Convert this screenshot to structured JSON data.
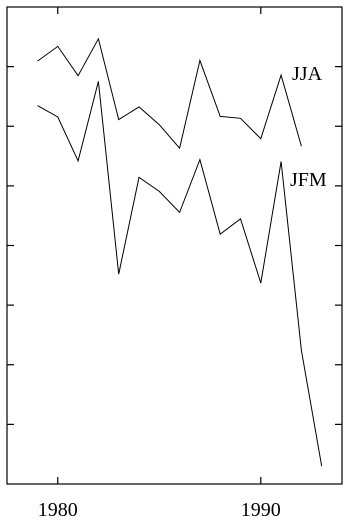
{
  "chart_data": {
    "type": "line",
    "title": "",
    "xlabel": "",
    "ylabel": "",
    "xlim": [
      1977.5,
      1994.0
    ],
    "ylim": [
      0.0,
      7.5
    ],
    "grid": false,
    "legend": "inline labels at right end of each series",
    "xticks": [
      1980,
      1990
    ],
    "yticks_count": 7,
    "series": [
      {
        "name": "JJA",
        "x": [
          1979,
          1980,
          1981,
          1982,
          1983,
          1984,
          1985,
          1986,
          1987,
          1988,
          1989,
          1990,
          1991,
          1992
        ],
        "y": [
          6.65,
          6.88,
          6.42,
          7.0,
          5.73,
          5.93,
          5.65,
          5.28,
          6.66,
          5.78,
          5.75,
          5.43,
          6.43,
          5.31
        ]
      },
      {
        "name": "JFM",
        "x": [
          1979,
          1980,
          1981,
          1982,
          1983,
          1984,
          1985,
          1986,
          1987,
          1988,
          1989,
          1990,
          1991,
          1992,
          1993
        ],
        "y": [
          5.95,
          5.77,
          5.08,
          6.33,
          3.3,
          4.82,
          4.6,
          4.27,
          5.1,
          3.93,
          4.17,
          3.16,
          5.07,
          2.1,
          0.28
        ]
      }
    ]
  }
}
